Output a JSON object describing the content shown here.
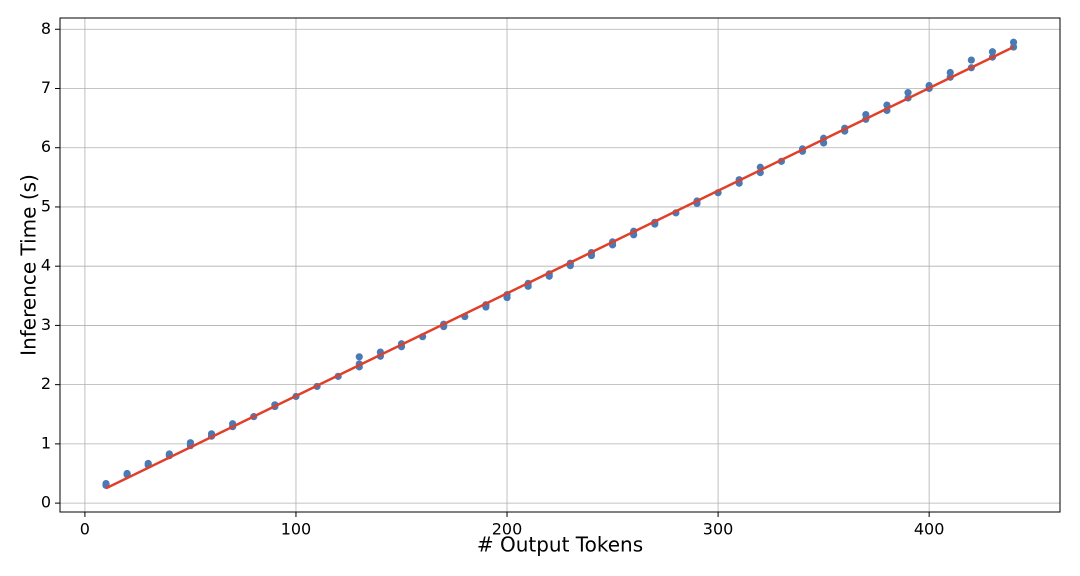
{
  "chart_data": {
    "type": "scatter",
    "x_label": "# Output Tokens",
    "y_label": "Inference Time (s)",
    "xlim": [
      -11.8,
      462
    ],
    "ylim": [
      -0.15,
      8.19
    ],
    "xticks": [
      0,
      100,
      200,
      300,
      400
    ],
    "yticks": [
      0,
      1,
      2,
      3,
      4,
      5,
      6,
      7,
      8
    ],
    "grid": true,
    "series": [
      {
        "type": "scatter",
        "color": "#4a7ab5",
        "x": [
          10,
          10,
          20,
          20,
          30,
          30,
          40,
          40,
          50,
          50,
          60,
          60,
          70,
          70,
          80,
          90,
          90,
          100,
          110,
          120,
          130,
          130,
          130,
          140,
          140,
          150,
          150,
          160,
          170,
          170,
          180,
          190,
          190,
          200,
          200,
          210,
          210,
          220,
          220,
          230,
          230,
          240,
          240,
          250,
          250,
          260,
          260,
          270,
          270,
          280,
          290,
          290,
          300,
          310,
          310,
          320,
          320,
          330,
          340,
          340,
          350,
          350,
          360,
          360,
          370,
          370,
          380,
          380,
          390,
          390,
          400,
          400,
          410,
          410,
          420,
          420,
          430,
          430,
          440,
          440
        ],
        "values": [
          0.3,
          0.33,
          0.48,
          0.5,
          0.64,
          0.67,
          0.8,
          0.83,
          0.97,
          1.02,
          1.13,
          1.17,
          1.29,
          1.34,
          1.46,
          1.63,
          1.66,
          1.8,
          1.97,
          2.14,
          2.3,
          2.35,
          2.47,
          2.48,
          2.55,
          2.64,
          2.69,
          2.81,
          2.98,
          3.02,
          3.15,
          3.31,
          3.35,
          3.47,
          3.52,
          3.66,
          3.71,
          3.83,
          3.87,
          4.01,
          4.05,
          4.18,
          4.23,
          4.36,
          4.41,
          4.53,
          4.59,
          4.71,
          4.74,
          4.9,
          5.06,
          5.1,
          5.24,
          5.4,
          5.46,
          5.58,
          5.67,
          5.77,
          5.94,
          5.98,
          6.08,
          6.16,
          6.28,
          6.33,
          6.48,
          6.56,
          6.63,
          6.72,
          6.84,
          6.93,
          7.0,
          7.05,
          7.19,
          7.27,
          7.35,
          7.48,
          7.53,
          7.62,
          7.7,
          7.78
        ]
      },
      {
        "type": "line",
        "color": "#e0402a",
        "x": [
          10,
          440
        ],
        "values": [
          0.25,
          7.7
        ]
      }
    ]
  }
}
